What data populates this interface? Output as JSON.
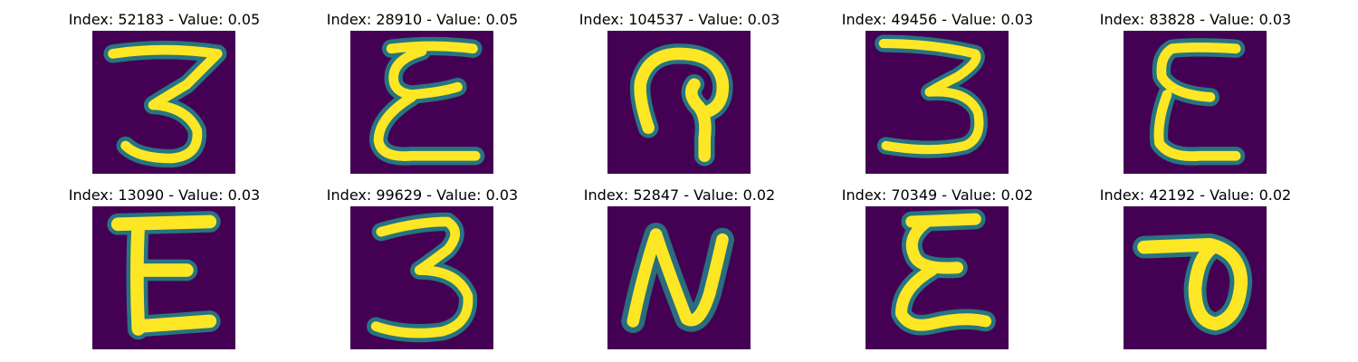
{
  "background_color": "#440154",
  "stroke_color": "#fde725",
  "edge_color": "#21918c",
  "figures": [
    {
      "title": "Index: 52183 - Value: 0.05",
      "glyph": "handwritten-3-icon"
    },
    {
      "title": "Index: 28910 - Value: 0.05",
      "glyph": "handwritten-epsilon-icon"
    },
    {
      "title": "Index: 104537 - Value: 0.03",
      "glyph": "handwritten-loop-icon"
    },
    {
      "title": "Index: 49456 - Value: 0.03",
      "glyph": "handwritten-3-icon"
    },
    {
      "title": "Index: 83828 - Value: 0.03",
      "glyph": "handwritten-e-icon"
    },
    {
      "title": "Index: 13090 - Value: 0.03",
      "glyph": "handwritten-e-icon"
    },
    {
      "title": "Index: 99629 - Value: 0.03",
      "glyph": "handwritten-3-icon"
    },
    {
      "title": "Index: 52847 - Value: 0.02",
      "glyph": "handwritten-n-icon"
    },
    {
      "title": "Index: 70349 - Value: 0.02",
      "glyph": "handwritten-epsilon-icon"
    },
    {
      "title": "Index: 42192 - Value: 0.02",
      "glyph": "handwritten-loop-icon"
    }
  ]
}
